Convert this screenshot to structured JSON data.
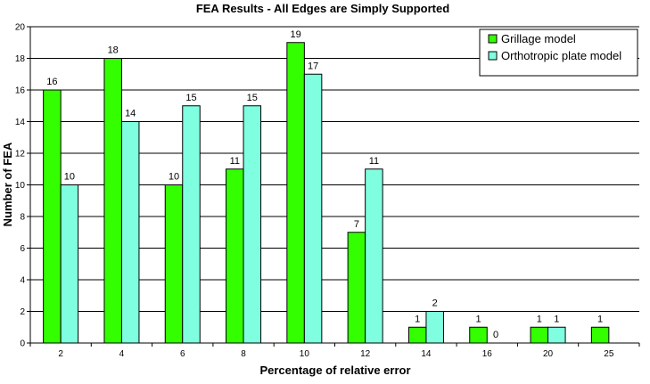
{
  "chart_data": {
    "type": "bar",
    "title": "FEA Results - All Edges are Simply Supported",
    "xlabel": "Percentage of relative error",
    "ylabel": "Number of FEA",
    "categories": [
      "2",
      "4",
      "6",
      "8",
      "10",
      "12",
      "14",
      "16",
      "20",
      "25"
    ],
    "series": [
      {
        "name": "Grillage model",
        "color": "#33ff00",
        "values": [
          16,
          18,
          10,
          11,
          19,
          7,
          1,
          1,
          1,
          1
        ]
      },
      {
        "name": "Orthotropic plate model",
        "color": "#80ffe0",
        "values": [
          10,
          14,
          15,
          15,
          17,
          11,
          2,
          0,
          1,
          null
        ]
      }
    ],
    "ylim": [
      0,
      20
    ],
    "ystep": 2,
    "grid": true,
    "legend": "top-right"
  }
}
